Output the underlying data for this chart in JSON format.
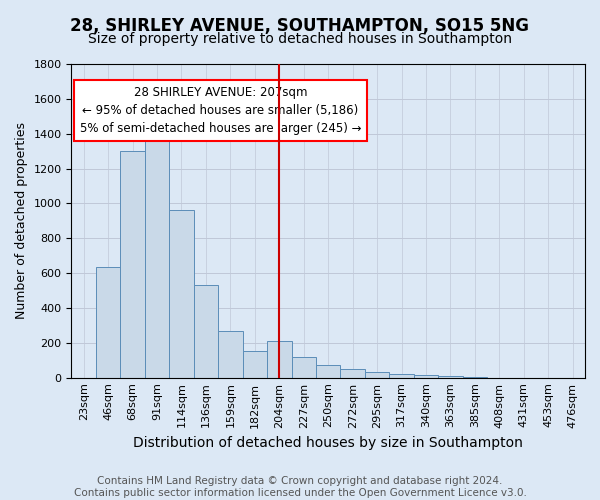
{
  "title": "28, SHIRLEY AVENUE, SOUTHAMPTON, SO15 5NG",
  "subtitle": "Size of property relative to detached houses in Southampton",
  "xlabel": "Distribution of detached houses by size in Southampton",
  "ylabel": "Number of detached properties",
  "footer_line1": "Contains HM Land Registry data © Crown copyright and database right 2024.",
  "footer_line2": "Contains public sector information licensed under the Open Government Licence v3.0.",
  "annotation_title": "28 SHIRLEY AVENUE: 207sqm",
  "annotation_line1": "← 95% of detached houses are smaller (5,186)",
  "annotation_line2": "5% of semi-detached houses are larger (245) →",
  "bar_categories": [
    "23sqm",
    "46sqm",
    "68sqm",
    "91sqm",
    "114sqm",
    "136sqm",
    "159sqm",
    "182sqm",
    "204sqm",
    "227sqm",
    "250sqm",
    "272sqm",
    "295sqm",
    "317sqm",
    "340sqm",
    "363sqm",
    "385sqm",
    "408sqm",
    "431sqm",
    "453sqm",
    "476sqm"
  ],
  "bar_values": [
    0,
    637,
    1300,
    1370,
    960,
    530,
    270,
    155,
    210,
    120,
    70,
    50,
    35,
    20,
    15,
    8,
    3,
    0,
    0,
    0,
    0
  ],
  "bar_color": "#c9d9e8",
  "bar_edge_color": "#5b8db8",
  "grid_color": "#c0c8d8",
  "background_color": "#dce8f5",
  "marker_color": "#cc0000",
  "ylim": [
    0,
    1800
  ],
  "yticks": [
    0,
    200,
    400,
    600,
    800,
    1000,
    1200,
    1400,
    1600,
    1800
  ],
  "title_fontsize": 12,
  "subtitle_fontsize": 10,
  "xlabel_fontsize": 10,
  "ylabel_fontsize": 9,
  "tick_fontsize": 8,
  "annotation_fontsize": 8.5,
  "footer_fontsize": 7.5
}
